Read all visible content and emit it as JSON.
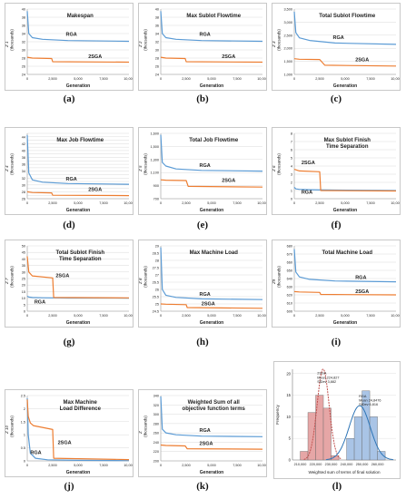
{
  "figure": {
    "captions": [
      "(a)",
      "(b)",
      "(c)",
      "(d)",
      "(e)",
      "(f)",
      "(g)",
      "(h)",
      "(i)",
      "(j)",
      "(k)",
      "(l)"
    ]
  },
  "colors": {
    "rga": "#5b9bd5",
    "ga2": "#ed7d31",
    "grid": "#d9d9d9",
    "hist_2sga": "#e6a6a6",
    "hist_rga": "#a9c4e6",
    "curve_rga": "#2e75b6",
    "curve_2sga": "#c0504d"
  },
  "chart_data": [
    {
      "type": "line",
      "title": "Makespan",
      "ylabel": "Z 1",
      "yunit": "(thousands)",
      "xlabel": "Generation",
      "x_ticks": [
        "0",
        "2,500",
        "5,000",
        "7,500",
        "10,000"
      ],
      "xlim": [
        0,
        10000
      ],
      "y_ticks": [
        "24",
        "26",
        "28",
        "30",
        "32",
        "34",
        "36",
        "38",
        "40"
      ],
      "ylim": [
        24,
        40
      ],
      "series": [
        {
          "name": "RGA",
          "x": [
            0,
            150,
            500,
            1500,
            4000,
            10000
          ],
          "y": [
            39.5,
            34.0,
            33.0,
            32.6,
            32.3,
            32.1
          ]
        },
        {
          "name": "2SGA",
          "x": [
            0,
            500,
            2400,
            2500,
            10000
          ],
          "y": [
            28.2,
            28.0,
            27.9,
            27.1,
            27.0
          ]
        }
      ],
      "labels": [
        {
          "text": "RGA",
          "x": 3800,
          "y": 33.4
        },
        {
          "text": "2SGA",
          "x": 6000,
          "y": 28.0
        }
      ]
    },
    {
      "type": "line",
      "title": "Max Sublot Flowtime",
      "ylabel": "Z 2",
      "yunit": "(thousands)",
      "xlabel": "Generation",
      "x_ticks": [
        "0",
        "2,500",
        "5,000",
        "7,500",
        "10,000"
      ],
      "xlim": [
        0,
        10000
      ],
      "y_ticks": [
        "24",
        "26",
        "28",
        "30",
        "32",
        "34",
        "36",
        "38",
        "40"
      ],
      "ylim": [
        24,
        40
      ],
      "series": [
        {
          "name": "RGA",
          "x": [
            0,
            150,
            500,
            1500,
            4000,
            10000
          ],
          "y": [
            39.5,
            34.0,
            33.0,
            32.6,
            32.3,
            32.1
          ]
        },
        {
          "name": "2SGA",
          "x": [
            0,
            500,
            2400,
            2500,
            10000
          ],
          "y": [
            28.2,
            28.0,
            27.9,
            27.1,
            27.0
          ]
        }
      ],
      "labels": [
        {
          "text": "RGA",
          "x": 3800,
          "y": 33.4
        },
        {
          "text": "2SGA",
          "x": 6000,
          "y": 28.0
        }
      ]
    },
    {
      "type": "line",
      "title": "Total Sublot Flowtime",
      "ylabel": "Z 3",
      "yunit": "(thousands)",
      "xlabel": "Generation",
      "x_ticks": [
        "0",
        "2,500",
        "5,000",
        "7,500",
        "10,000"
      ],
      "xlim": [
        0,
        10000
      ],
      "y_ticks": [
        "1,000",
        "1,500",
        "2,000",
        "2,500",
        "3,000",
        "3,500"
      ],
      "ylim": [
        1000,
        3500
      ],
      "series": [
        {
          "name": "RGA",
          "x": [
            0,
            150,
            500,
            1500,
            4000,
            10000
          ],
          "y": [
            3400,
            2600,
            2400,
            2300,
            2200,
            2150
          ]
        },
        {
          "name": "2SGA",
          "x": [
            0,
            500,
            2500,
            3000,
            10000
          ],
          "y": [
            1600,
            1580,
            1570,
            1350,
            1320
          ]
        }
      ],
      "labels": [
        {
          "text": "RGA",
          "x": 3800,
          "y": 2350
        },
        {
          "text": "2SGA",
          "x": 6000,
          "y": 1500
        }
      ]
    },
    {
      "type": "line",
      "title": "Max Job Flowtime",
      "ylabel": "Z 4",
      "yunit": "(thousands)",
      "xlabel": "Generation",
      "x_ticks": [
        "0",
        "2,500",
        "5,000",
        "7,500",
        "10,000"
      ],
      "xlim": [
        0,
        10000
      ],
      "y_ticks": [
        "26",
        "27",
        "28",
        "29",
        "30",
        "31",
        "32",
        "33",
        "34",
        "35",
        "36",
        "37",
        "38",
        "39",
        "40",
        "41",
        "42",
        "43",
        "44",
        "45"
      ],
      "ylim": [
        26,
        45
      ],
      "series": [
        {
          "name": "RGA",
          "x": [
            0,
            150,
            500,
            1500,
            4000,
            10000
          ],
          "y": [
            44.5,
            33.5,
            31.5,
            30.8,
            30.4,
            30.2
          ]
        },
        {
          "name": "2SGA",
          "x": [
            0,
            500,
            2400,
            2500,
            10000
          ],
          "y": [
            28.0,
            27.8,
            27.7,
            27.0,
            26.9
          ]
        }
      ],
      "labels": [
        {
          "text": "RGA",
          "x": 3800,
          "y": 31.3
        },
        {
          "text": "2SGA",
          "x": 6000,
          "y": 28.2
        }
      ]
    },
    {
      "type": "line",
      "title": "Total Job Flowtime",
      "ylabel": "Z 5",
      "yunit": "(thousands)",
      "xlabel": "Generation",
      "x_ticks": [
        "0",
        "2,500",
        "5,000",
        "7,500",
        "10,000"
      ],
      "xlim": [
        0,
        10000
      ],
      "y_ticks": [
        "700",
        "900",
        "1,100",
        "1,300",
        "1,500",
        "1,600"
      ],
      "ylim": [
        700,
        1600
      ],
      "series": [
        {
          "name": "RGA",
          "x": [
            0,
            150,
            500,
            1500,
            4000,
            10000
          ],
          "y": [
            1580,
            1200,
            1150,
            1110,
            1090,
            1080
          ]
        },
        {
          "name": "2SGA",
          "x": [
            0,
            500,
            2500,
            2700,
            10000
          ],
          "y": [
            960,
            955,
            950,
            870,
            860
          ]
        }
      ],
      "labels": [
        {
          "text": "RGA",
          "x": 3800,
          "y": 1140
        },
        {
          "text": "2SGA",
          "x": 6000,
          "y": 930
        }
      ]
    },
    {
      "type": "line",
      "title": "Max Sublot Finish Time Separation",
      "ylabel": "Z 6",
      "yunit": "(thousands)",
      "xlabel": "Generation",
      "x_ticks": [
        "0",
        "2,500",
        "5,000",
        "7,500",
        "10,000"
      ],
      "xlim": [
        0,
        10000
      ],
      "y_ticks": [
        "0",
        "1",
        "2",
        "3",
        "4",
        "5",
        "6",
        "7",
        "8"
      ],
      "ylim": [
        0,
        8
      ],
      "series": [
        {
          "name": "RGA",
          "x": [
            0,
            150,
            500,
            1500,
            4000,
            10000
          ],
          "y": [
            1.4,
            1.2,
            1.15,
            1.1,
            1.05,
            1.0
          ]
        },
        {
          "name": "2SGA",
          "x": [
            0,
            500,
            2500,
            2600,
            10000
          ],
          "y": [
            3.6,
            3.4,
            3.3,
            1.0,
            0.95
          ]
        }
      ],
      "labels": [
        {
          "text": "2SGA",
          "x": 700,
          "y": 4.2
        },
        {
          "text": "RGA",
          "x": 700,
          "y": 0.6
        }
      ]
    },
    {
      "type": "line",
      "title": "Total Sublot Finish Time Separation",
      "ylabel": "Z 7",
      "yunit": "(thousands)",
      "xlabel": "Generation",
      "x_ticks": [
        "0",
        "2,500",
        "5,000",
        "7,500",
        "10,000"
      ],
      "xlim": [
        0,
        10000
      ],
      "y_ticks": [
        "0",
        "5",
        "10",
        "15",
        "20",
        "25",
        "30",
        "35",
        "40",
        "45",
        "50"
      ],
      "ylim": [
        0,
        50
      ],
      "series": [
        {
          "name": "RGA",
          "x": [
            0,
            150,
            500,
            1500,
            4000,
            10000
          ],
          "y": [
            11.5,
            10.8,
            10.5,
            10.3,
            10.1,
            10.0
          ]
        },
        {
          "name": "2SGA",
          "x": [
            0,
            150,
            500,
            2500,
            2600,
            10000
          ],
          "y": [
            42.0,
            30.0,
            27.0,
            25.5,
            10.5,
            10.2
          ]
        }
      ],
      "labels": [
        {
          "text": "2SGA",
          "x": 2800,
          "y": 26.0
        },
        {
          "text": "RGA",
          "x": 700,
          "y": 6.0
        }
      ]
    },
    {
      "type": "line",
      "title": "Max Machine Load",
      "ylabel": "Z 8",
      "yunit": "(thousands)",
      "xlabel": "Generation",
      "x_ticks": [
        "0",
        "2,500",
        "5,000",
        "7,500",
        "10,000"
      ],
      "xlim": [
        0,
        10000
      ],
      "y_ticks": [
        "24.5",
        "25",
        "25.5",
        "26",
        "26.5",
        "27",
        "27.5",
        "28",
        "28.5",
        "29"
      ],
      "ylim": [
        24.5,
        29
      ],
      "series": [
        {
          "name": "RGA",
          "x": [
            0,
            150,
            500,
            1500,
            4000,
            10000
          ],
          "y": [
            28.9,
            26.0,
            25.6,
            25.45,
            25.35,
            25.3
          ]
        },
        {
          "name": "2SGA",
          "x": [
            0,
            500,
            2500,
            2600,
            10000
          ],
          "y": [
            25.0,
            24.98,
            24.95,
            24.75,
            24.7
          ]
        }
      ],
      "labels": [
        {
          "text": "RGA",
          "x": 3800,
          "y": 25.55
        },
        {
          "text": "2SGA",
          "x": 4000,
          "y": 24.92
        }
      ]
    },
    {
      "type": "line",
      "title": "Total Machine Load",
      "ylabel": "Z9",
      "yunit": "(thousands)",
      "xlabel": "Generation",
      "x_ticks": [
        "0",
        "2,500",
        "5,000",
        "7,500",
        "10,000"
      ],
      "xlim": [
        0,
        10000
      ],
      "y_ticks": [
        "600",
        "610",
        "620",
        "630",
        "640",
        "650",
        "660",
        "670",
        "680"
      ],
      "ylim": [
        600,
        680
      ],
      "series": [
        {
          "name": "RGA",
          "x": [
            0,
            150,
            500,
            1500,
            4000,
            10000
          ],
          "y": [
            676,
            648,
            642,
            639,
            637,
            636
          ]
        },
        {
          "name": "2SGA",
          "x": [
            0,
            500,
            2500,
            2600,
            10000
          ],
          "y": [
            624,
            623.5,
            623,
            620.5,
            620
          ]
        }
      ],
      "labels": [
        {
          "text": "RGA",
          "x": 6000,
          "y": 639.5
        },
        {
          "text": "2SGA",
          "x": 6000,
          "y": 622.5
        }
      ]
    },
    {
      "type": "line",
      "title": "Max Machine Load Difference",
      "ylabel": "Z 10",
      "yunit": "(thousands)",
      "xlabel": "Generation",
      "x_ticks": [
        "0",
        "2,500",
        "5,000",
        "7,500",
        "10,000"
      ],
      "xlim": [
        0,
        10000
      ],
      "y_ticks": [
        "0",
        "0.5",
        "1",
        "1.5",
        "2",
        "2.5"
      ],
      "ylim": [
        0,
        2.5
      ],
      "series": [
        {
          "name": "RGA",
          "x": [
            0,
            100,
            300,
            800,
            2000,
            5000,
            10000
          ],
          "y": [
            2.4,
            1.0,
            0.3,
            0.1,
            0.04,
            0.02,
            0.01
          ]
        },
        {
          "name": "2SGA",
          "x": [
            0,
            100,
            300,
            600,
            1500,
            2500,
            2600,
            10000
          ],
          "y": [
            2.35,
            1.7,
            1.45,
            1.35,
            1.28,
            1.2,
            0.1,
            0.05
          ]
        }
      ],
      "labels": [
        {
          "text": "2SGA",
          "x": 3000,
          "y": 0.65
        },
        {
          "text": "RGA",
          "x": 300,
          "y": 0.26
        }
      ]
    },
    {
      "type": "line",
      "title": "Weighted Sum of all objective function terms",
      "ylabel": "Z",
      "yunit": "(thousands)",
      "xlabel": "Generation",
      "x_ticks": [
        "0",
        "2,500",
        "5,000",
        "7,500",
        "10,000"
      ],
      "xlim": [
        0,
        10000
      ],
      "y_ticks": [
        "200",
        "220",
        "240",
        "260",
        "280",
        "300",
        "320",
        "340"
      ],
      "ylim": [
        200,
        340
      ],
      "series": [
        {
          "name": "RGA",
          "x": [
            0,
            150,
            500,
            1500,
            4000,
            10000
          ],
          "y": [
            338,
            268,
            260,
            256,
            253,
            252
          ]
        },
        {
          "name": "2SGA",
          "x": [
            0,
            500,
            2400,
            2600,
            10000
          ],
          "y": [
            234,
            233,
            232,
            226,
            225
          ]
        }
      ],
      "labels": [
        {
          "text": "RGA",
          "x": 3800,
          "y": 262
        },
        {
          "text": "2SGA",
          "x": 3800,
          "y": 234
        }
      ]
    },
    {
      "type": "bar",
      "subtype": "histogram_with_normal_fit",
      "xlabel": "Weighted sum of terms of final solution",
      "ylabel": "Frequency",
      "x_ticks": [
        "210,000",
        "220,000",
        "230,000",
        "240,000",
        "250,000",
        "260,000"
      ],
      "xlim": [
        205000,
        272000
      ],
      "y_ticks": [
        "0",
        "5",
        "10",
        "15",
        "20"
      ],
      "ylim": [
        0,
        21
      ],
      "series": [
        {
          "name": "2SGA",
          "bin_width": 5000,
          "bin_starts": [
            210000,
            215000,
            220000,
            225000,
            230000
          ],
          "values": [
            2,
            11,
            15,
            12,
            1
          ]
        },
        {
          "name": "RGA",
          "bin_width": 5000,
          "bin_starts": [
            240000,
            245000,
            250000,
            255000,
            260000
          ],
          "values": [
            5,
            10,
            16,
            10,
            2
          ]
        }
      ],
      "fits": [
        {
          "mean": 224827,
          "sd": 3882
        },
        {
          "mean": 248476,
          "sd": 6816
        }
      ],
      "annotations": [
        {
          "lines": [
            "2SGA",
            "Mean 224,827",
            "StDev 3,882"
          ],
          "x": 221000,
          "y": 19.8
        },
        {
          "lines": [
            "RGA",
            "Mean 24,8476",
            "StDev 6,816"
          ],
          "x": 248000,
          "y": 14.5
        }
      ]
    }
  ]
}
